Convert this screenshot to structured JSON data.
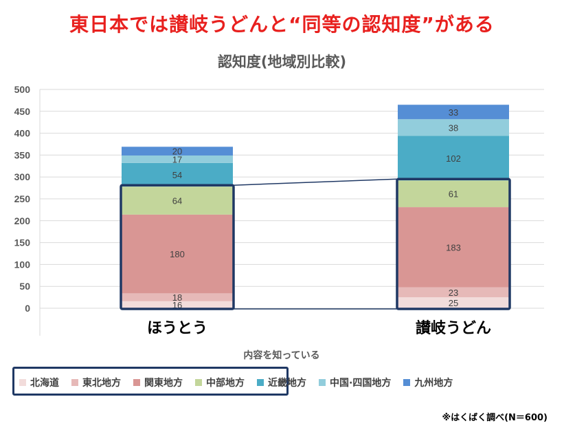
{
  "headline": "東日本では讃岐うどんと“同等の認知度”がある",
  "source_note": "※はくばく調べ(N＝600)",
  "chart_data": {
    "type": "bar",
    "stacked": true,
    "title": "認知度(地域別比較)",
    "xlabel": "内容を知っている",
    "ylabel": "",
    "ylim": [
      0,
      500
    ],
    "ytick_step": 50,
    "categories": [
      "ほうとう",
      "讃岐うどん"
    ],
    "series": [
      {
        "name": "北海道",
        "color": "#f2dcdb",
        "values": [
          16,
          25
        ]
      },
      {
        "name": "東北地方",
        "color": "#e6b9b8",
        "values": [
          18,
          23
        ]
      },
      {
        "name": "関東地方",
        "color": "#d99694",
        "values": [
          180,
          183
        ]
      },
      {
        "name": "中部地方",
        "color": "#c3d69b",
        "values": [
          64,
          61
        ]
      },
      {
        "name": "近畿地方",
        "color": "#4bacc6",
        "values": [
          54,
          102
        ]
      },
      {
        "name": "中国·四国地方",
        "color": "#92cddc",
        "values": [
          17,
          38
        ]
      },
      {
        "name": "九州地方",
        "color": "#558ed5",
        "values": [
          20,
          33
        ]
      }
    ],
    "highlight_series_count": 4
  },
  "colors": {
    "headline": "#e8201e",
    "highlight": "#1f3864"
  }
}
